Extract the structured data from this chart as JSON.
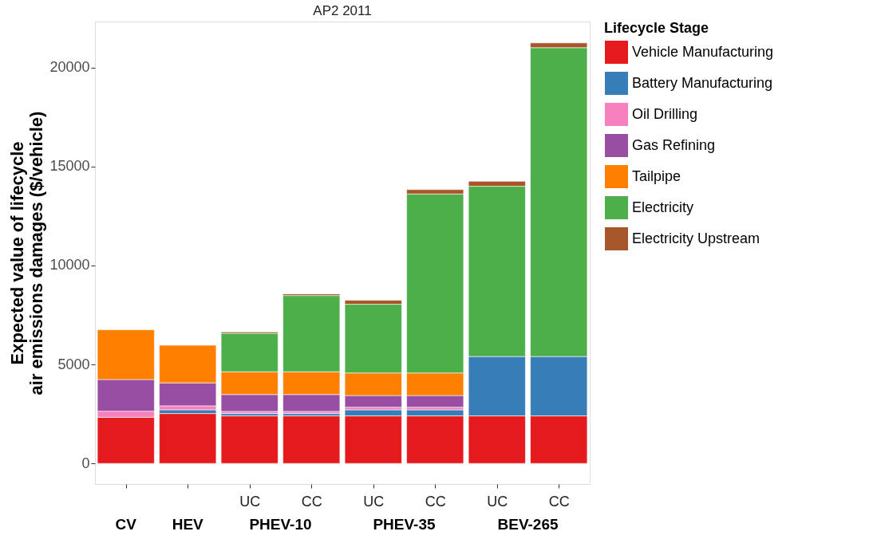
{
  "chart_data": {
    "type": "bar",
    "stacked": true,
    "title": "AP2 2011",
    "ylabel": "Expected value of lifecycle\nair emissions damages ($/vehicle)",
    "legend_title": "Lifecycle Stage",
    "legend": "right",
    "grid": false,
    "categories": [
      null,
      null,
      "UC",
      "CC",
      "UC",
      "CC",
      "UC",
      "CC"
    ],
    "annotations": [
      "CV",
      "HEV",
      "PHEV-10",
      "PHEV-35",
      "BEV-265"
    ],
    "ylim": [
      -1040,
      22320
    ],
    "yticks": [
      0,
      5000,
      10000,
      15000,
      20000
    ],
    "series": [
      {
        "name": "Vehicle Manufacturing",
        "color": "#e41a1c",
        "values": [
          2330,
          2520,
          2400,
          2400,
          2400,
          2400,
          2400,
          2400
        ]
      },
      {
        "name": "Battery Manufacturing",
        "color": "#377eb8",
        "values": [
          null,
          190,
          120,
          120,
          310,
          310,
          3000,
          3000
        ]
      },
      {
        "name": "Oil Drilling",
        "color": "#f781bf",
        "values": [
          310,
          200,
          110,
          110,
          130,
          130,
          null,
          null
        ]
      },
      {
        "name": "Gas Refining",
        "color": "#984ea3",
        "values": [
          1600,
          1160,
          850,
          850,
          590,
          590,
          null,
          null
        ]
      },
      {
        "name": "Tailpipe",
        "color": "#ff7f00",
        "values": [
          2510,
          1900,
          1150,
          1150,
          1140,
          1140,
          null,
          null
        ]
      },
      {
        "name": "Electricity",
        "color": "#4daf4a",
        "values": [
          null,
          null,
          1940,
          3850,
          3470,
          9040,
          8600,
          15600
        ]
      },
      {
        "name": "Electricity Upstream",
        "color": "#a65628",
        "values": [
          null,
          null,
          70,
          80,
          200,
          220,
          250,
          240
        ]
      }
    ]
  }
}
